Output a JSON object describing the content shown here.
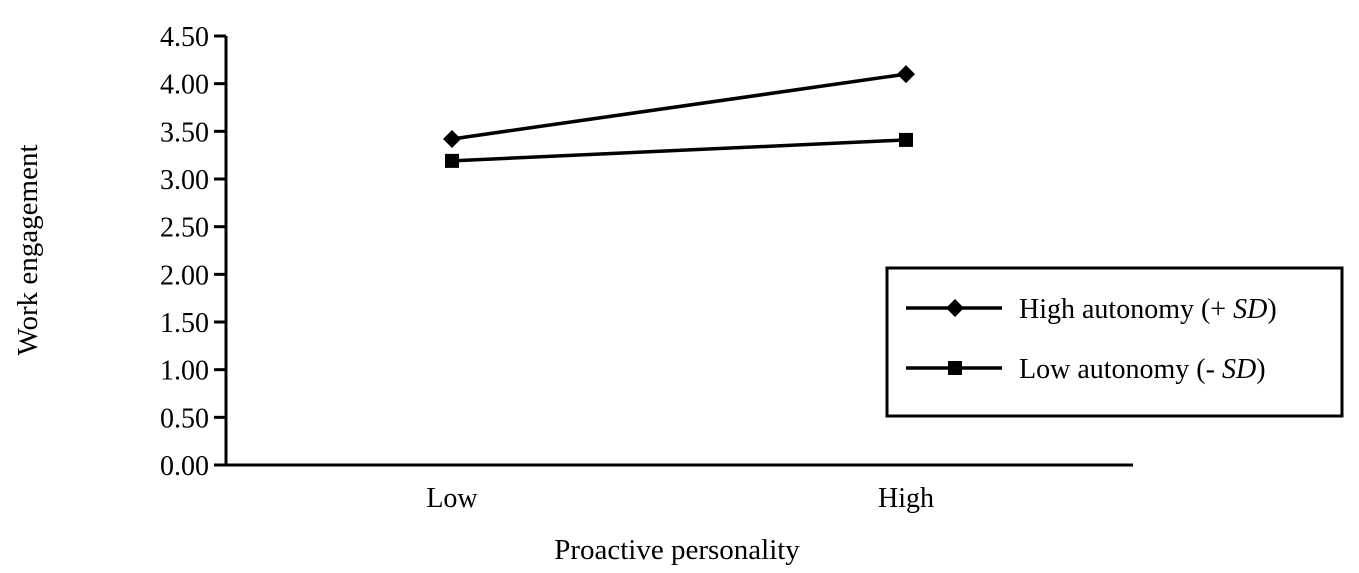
{
  "chart_data": {
    "type": "line",
    "title": "",
    "xlabel": "Proactive personality",
    "ylabel": "Work engagement",
    "categories": [
      "Low",
      "High"
    ],
    "ylim": [
      0,
      4.5
    ],
    "yticks": [
      "0.00",
      "0.50",
      "1.00",
      "1.50",
      "2.00",
      "2.50",
      "3.00",
      "3.50",
      "4.00",
      "4.50"
    ],
    "grid": false,
    "legend_position": "right",
    "series": [
      {
        "name_prefix": "High autonomy (+ ",
        "name_italic": "SD",
        "name_suffix": ")",
        "marker": "diamond",
        "values": [
          3.42,
          4.1
        ]
      },
      {
        "name_prefix": "Low autonomy (- ",
        "name_italic": "SD",
        "name_suffix": ")",
        "marker": "square",
        "values": [
          3.19,
          3.41
        ]
      }
    ]
  }
}
